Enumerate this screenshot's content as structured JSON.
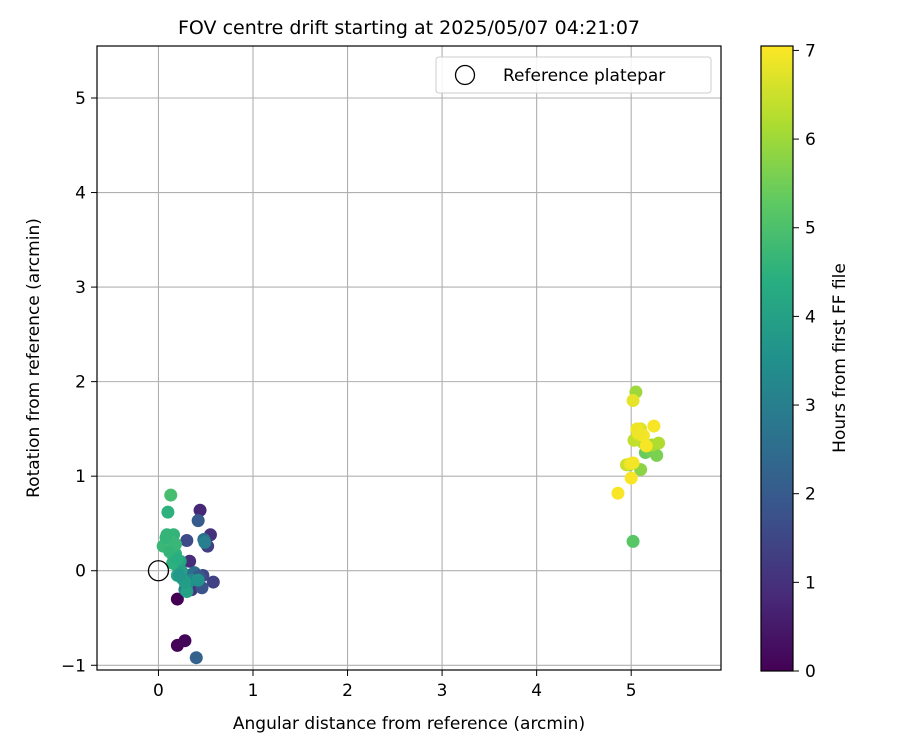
{
  "chart_data": {
    "type": "scatter",
    "title": "FOV centre drift starting at 2025/05/07 04:21:07",
    "xlabel": "Angular distance from reference (arcmin)",
    "ylabel": "Rotation from reference (arcmin)",
    "xlim": [
      -0.65,
      5.95
    ],
    "ylim": [
      -1.05,
      5.55
    ],
    "xticks": [
      0,
      1,
      2,
      3,
      4,
      5
    ],
    "yticks": [
      -1,
      0,
      1,
      2,
      3,
      4,
      5
    ],
    "grid": true,
    "legend": {
      "position": "top-right",
      "entries": [
        "Reference platepar"
      ]
    },
    "reference_point": {
      "label": "Reference platepar",
      "x": 0,
      "y": 0
    },
    "colorbar": {
      "label": "Hours from first FF file",
      "range": [
        0,
        7.05
      ],
      "ticks": [
        0,
        1,
        2,
        3,
        4,
        5,
        6,
        7
      ],
      "colormap": "viridis"
    },
    "series": [
      {
        "x": [
          0.2,
          0.2,
          0.28,
          0.44,
          0.33,
          0.42,
          0.55,
          0.52,
          0.35,
          0.4,
          0.47,
          0.3,
          0.58,
          0.46,
          0.48,
          0.32,
          0.38,
          0.4,
          0.43,
          0.28,
          0.35,
          0.49,
          0.3,
          0.42,
          0.25,
          0.3,
          0.2,
          0.23,
          0.16,
          0.18,
          0.12,
          0.15,
          0.1,
          0.05,
          0.09,
          0.13,
          0.16,
          0.2,
          0.24,
          0.28,
          0.22,
          0.1,
          0.14,
          0.18,
          0.12,
          0.15,
          0.08,
          0.2,
          5.02,
          4.98,
          5.15,
          5.2,
          5.27,
          5.1,
          5.05,
          5.22,
          5.29,
          5.12,
          5.03,
          4.95,
          5.08,
          5.1,
          5.02,
          4.99,
          5.06,
          5.13,
          5.24,
          5.0,
          5.16,
          5.07,
          5.02,
          4.86
        ],
        "y": [
          -0.3,
          -0.79,
          -0.74,
          0.64,
          0.1,
          0.53,
          0.38,
          0.26,
          -0.2,
          -0.08,
          -0.05,
          0.32,
          -0.12,
          -0.18,
          0.33,
          -0.05,
          -0.02,
          -0.92,
          -0.06,
          -0.2,
          -0.1,
          0.3,
          -0.15,
          -0.1,
          -0.08,
          -0.22,
          0.05,
          0.1,
          0.15,
          0.18,
          0.22,
          0.28,
          0.3,
          0.26,
          0.38,
          0.8,
          0.38,
          -0.05,
          0.0,
          -0.12,
          -0.05,
          0.62,
          0.3,
          0.28,
          0.2,
          0.08,
          0.35,
          0.12,
          0.31,
          1.12,
          1.25,
          1.27,
          1.22,
          1.07,
          1.89,
          1.33,
          1.35,
          1.36,
          1.38,
          1.12,
          1.44,
          1.5,
          1.8,
          1.13,
          1.5,
          1.43,
          1.53,
          0.98,
          1.32,
          1.46,
          1.14,
          0.82
        ],
        "hours": [
          0.0,
          0.05,
          0.1,
          0.8,
          0.9,
          2.0,
          1.0,
          1.3,
          1.1,
          1.2,
          1.5,
          1.6,
          1.4,
          1.8,
          2.6,
          2.3,
          2.5,
          2.2,
          1.9,
          2.9,
          3.2,
          3.0,
          3.4,
          3.6,
          3.8,
          4.0,
          4.2,
          4.1,
          4.4,
          4.5,
          4.6,
          4.7,
          4.8,
          4.7,
          4.6,
          4.9,
          4.6,
          4.3,
          4.0,
          3.9,
          3.7,
          4.5,
          4.8,
          4.7,
          4.6,
          4.5,
          4.6,
          4.4,
          5.2,
          5.3,
          5.4,
          5.5,
          5.6,
          5.8,
          6.0,
          6.1,
          6.2,
          6.3,
          6.4,
          6.5,
          6.6,
          6.7,
          6.8,
          6.85,
          6.9,
          6.95,
          7.0,
          7.0,
          6.98,
          6.9,
          6.95,
          7.0
        ]
      }
    ]
  }
}
